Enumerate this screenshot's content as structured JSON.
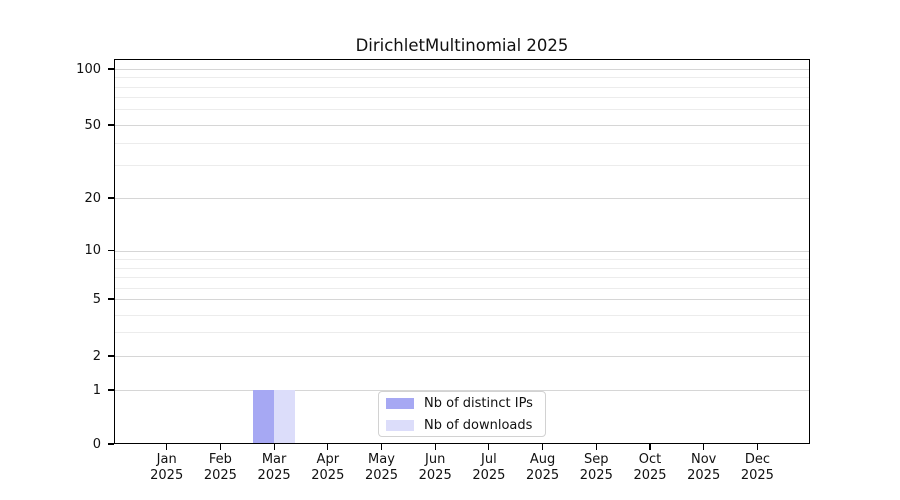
{
  "chart_data": {
    "type": "bar",
    "title": "DirichletMultinomial 2025",
    "xlabel": "",
    "ylabel": "",
    "x_categories": [
      "Jan",
      "Feb",
      "Mar",
      "Apr",
      "May",
      "Jun",
      "Jul",
      "Aug",
      "Sep",
      "Oct",
      "Nov",
      "Dec"
    ],
    "x_year_label": "2025",
    "yticks": [
      0,
      1,
      2,
      5,
      10,
      20,
      50,
      100
    ],
    "y_minor_gridline_values": [
      90,
      80,
      70,
      60,
      40,
      30,
      9,
      8,
      7,
      6,
      4,
      3
    ],
    "yscale": "log-like (0,1,2,5,10,20,50,100)",
    "ylim": [
      0,
      100
    ],
    "grid": true,
    "legend_position": "lower center",
    "series": [
      {
        "name": "Nb of distinct IPs",
        "color": "#a6a8f3",
        "values": [
          0,
          0,
          1,
          0,
          0,
          0,
          0,
          0,
          0,
          0,
          0,
          0
        ]
      },
      {
        "name": "Nb of downloads",
        "color": "#dcddfa",
        "values": [
          0,
          0,
          1,
          0,
          0,
          0,
          0,
          0,
          0,
          0,
          0,
          0
        ]
      }
    ]
  }
}
